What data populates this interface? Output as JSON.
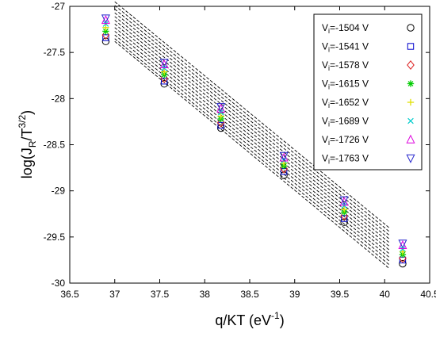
{
  "chart_data": {
    "type": "scatter",
    "title": "",
    "xlabel": "q/KT (eV",
    "xlabel_sup": "-1",
    "xlabel_tail": ")",
    "ylabel": "log(J",
    "ylabel_sub": "R",
    "ylabel_mid": "/T",
    "ylabel_sup": "3/2",
    "ylabel_tail": ")",
    "xlim": [
      36.5,
      40.5
    ],
    "ylim": [
      -30,
      -27
    ],
    "xticks": [
      36.5,
      37,
      37.5,
      38,
      38.5,
      39,
      39.5,
      40,
      40.5
    ],
    "xtick_labels": [
      "36.5",
      "37",
      "37.5",
      "38",
      "38.5",
      "39",
      "39.5",
      "40",
      "40.5"
    ],
    "yticks": [
      -30,
      -29.5,
      -29,
      -28.5,
      -28,
      -27.5,
      -27
    ],
    "ytick_labels": [
      "-30",
      "-29.5",
      "-29",
      "-28.5",
      "-28",
      "-27.5",
      "-27"
    ],
    "grid": false,
    "legend_position": "top-right",
    "x": [
      36.9,
      37.55,
      38.18,
      38.88,
      39.55,
      40.2
    ],
    "series": [
      {
        "legend_v": "V",
        "legend_sub": "i",
        "legend_rest": "=-1504 V",
        "marker": "circle",
        "color": "#000000",
        "y": [
          -27.38,
          -27.84,
          -28.32,
          -28.83,
          -29.34,
          -29.79
        ]
      },
      {
        "legend_v": "V",
        "legend_sub": "i",
        "legend_rest": "=-1541 V",
        "marker": "square",
        "color": "#0000cc",
        "y": [
          -27.34,
          -27.81,
          -28.29,
          -28.79,
          -29.3,
          -29.75
        ]
      },
      {
        "legend_v": "V",
        "legend_sub": "i",
        "legend_rest": "=-1578 V",
        "marker": "diamond",
        "color": "#dd2222",
        "y": [
          -27.31,
          -27.78,
          -28.26,
          -28.76,
          -29.27,
          -29.73
        ]
      },
      {
        "legend_v": "V",
        "legend_sub": "i",
        "legend_rest": "=-1615 V",
        "marker": "star",
        "color": "#00cc00",
        "y": [
          -27.27,
          -27.74,
          -28.22,
          -28.73,
          -29.23,
          -29.69
        ]
      },
      {
        "legend_v": "V",
        "legend_sub": "i",
        "legend_rest": "=-1652 V",
        "marker": "plus",
        "color": "#e0e000",
        "y": [
          -27.23,
          -27.71,
          -28.19,
          -28.7,
          -29.2,
          -29.66
        ]
      },
      {
        "legend_v": "V",
        "legend_sub": "i",
        "legend_rest": "=-1689 V",
        "marker": "x",
        "color": "#00cccc",
        "y": [
          -27.19,
          -27.67,
          -28.15,
          -28.67,
          -29.16,
          -29.63
        ]
      },
      {
        "legend_v": "V",
        "legend_sub": "i",
        "legend_rest": "=-1726 V",
        "marker": "triangle-up",
        "color": "#dd00dd",
        "y": [
          -27.15,
          -27.63,
          -28.11,
          -28.64,
          -29.12,
          -29.59
        ]
      },
      {
        "legend_v": "V",
        "legend_sub": "i",
        "legend_rest": "=-1763 V",
        "marker": "triangle-down",
        "color": "#2222cc",
        "y": [
          -27.13,
          -27.61,
          -28.09,
          -28.62,
          -29.1,
          -29.57
        ]
      }
    ],
    "fit_lines": {
      "color": "#000000",
      "style": "dashed",
      "x_range": [
        37.0,
        40.05
      ],
      "y_start": [
        -27.38,
        -27.35,
        -27.31,
        -27.27,
        -27.23,
        -27.19,
        -27.15,
        -27.11,
        -27.07,
        -27.03,
        -26.99,
        -26.95
      ],
      "y_end": [
        -29.84,
        -29.8,
        -29.76,
        -29.72,
        -29.68,
        -29.64,
        -29.6,
        -29.56,
        -29.52,
        -29.48,
        -29.44,
        -29.4
      ]
    }
  }
}
